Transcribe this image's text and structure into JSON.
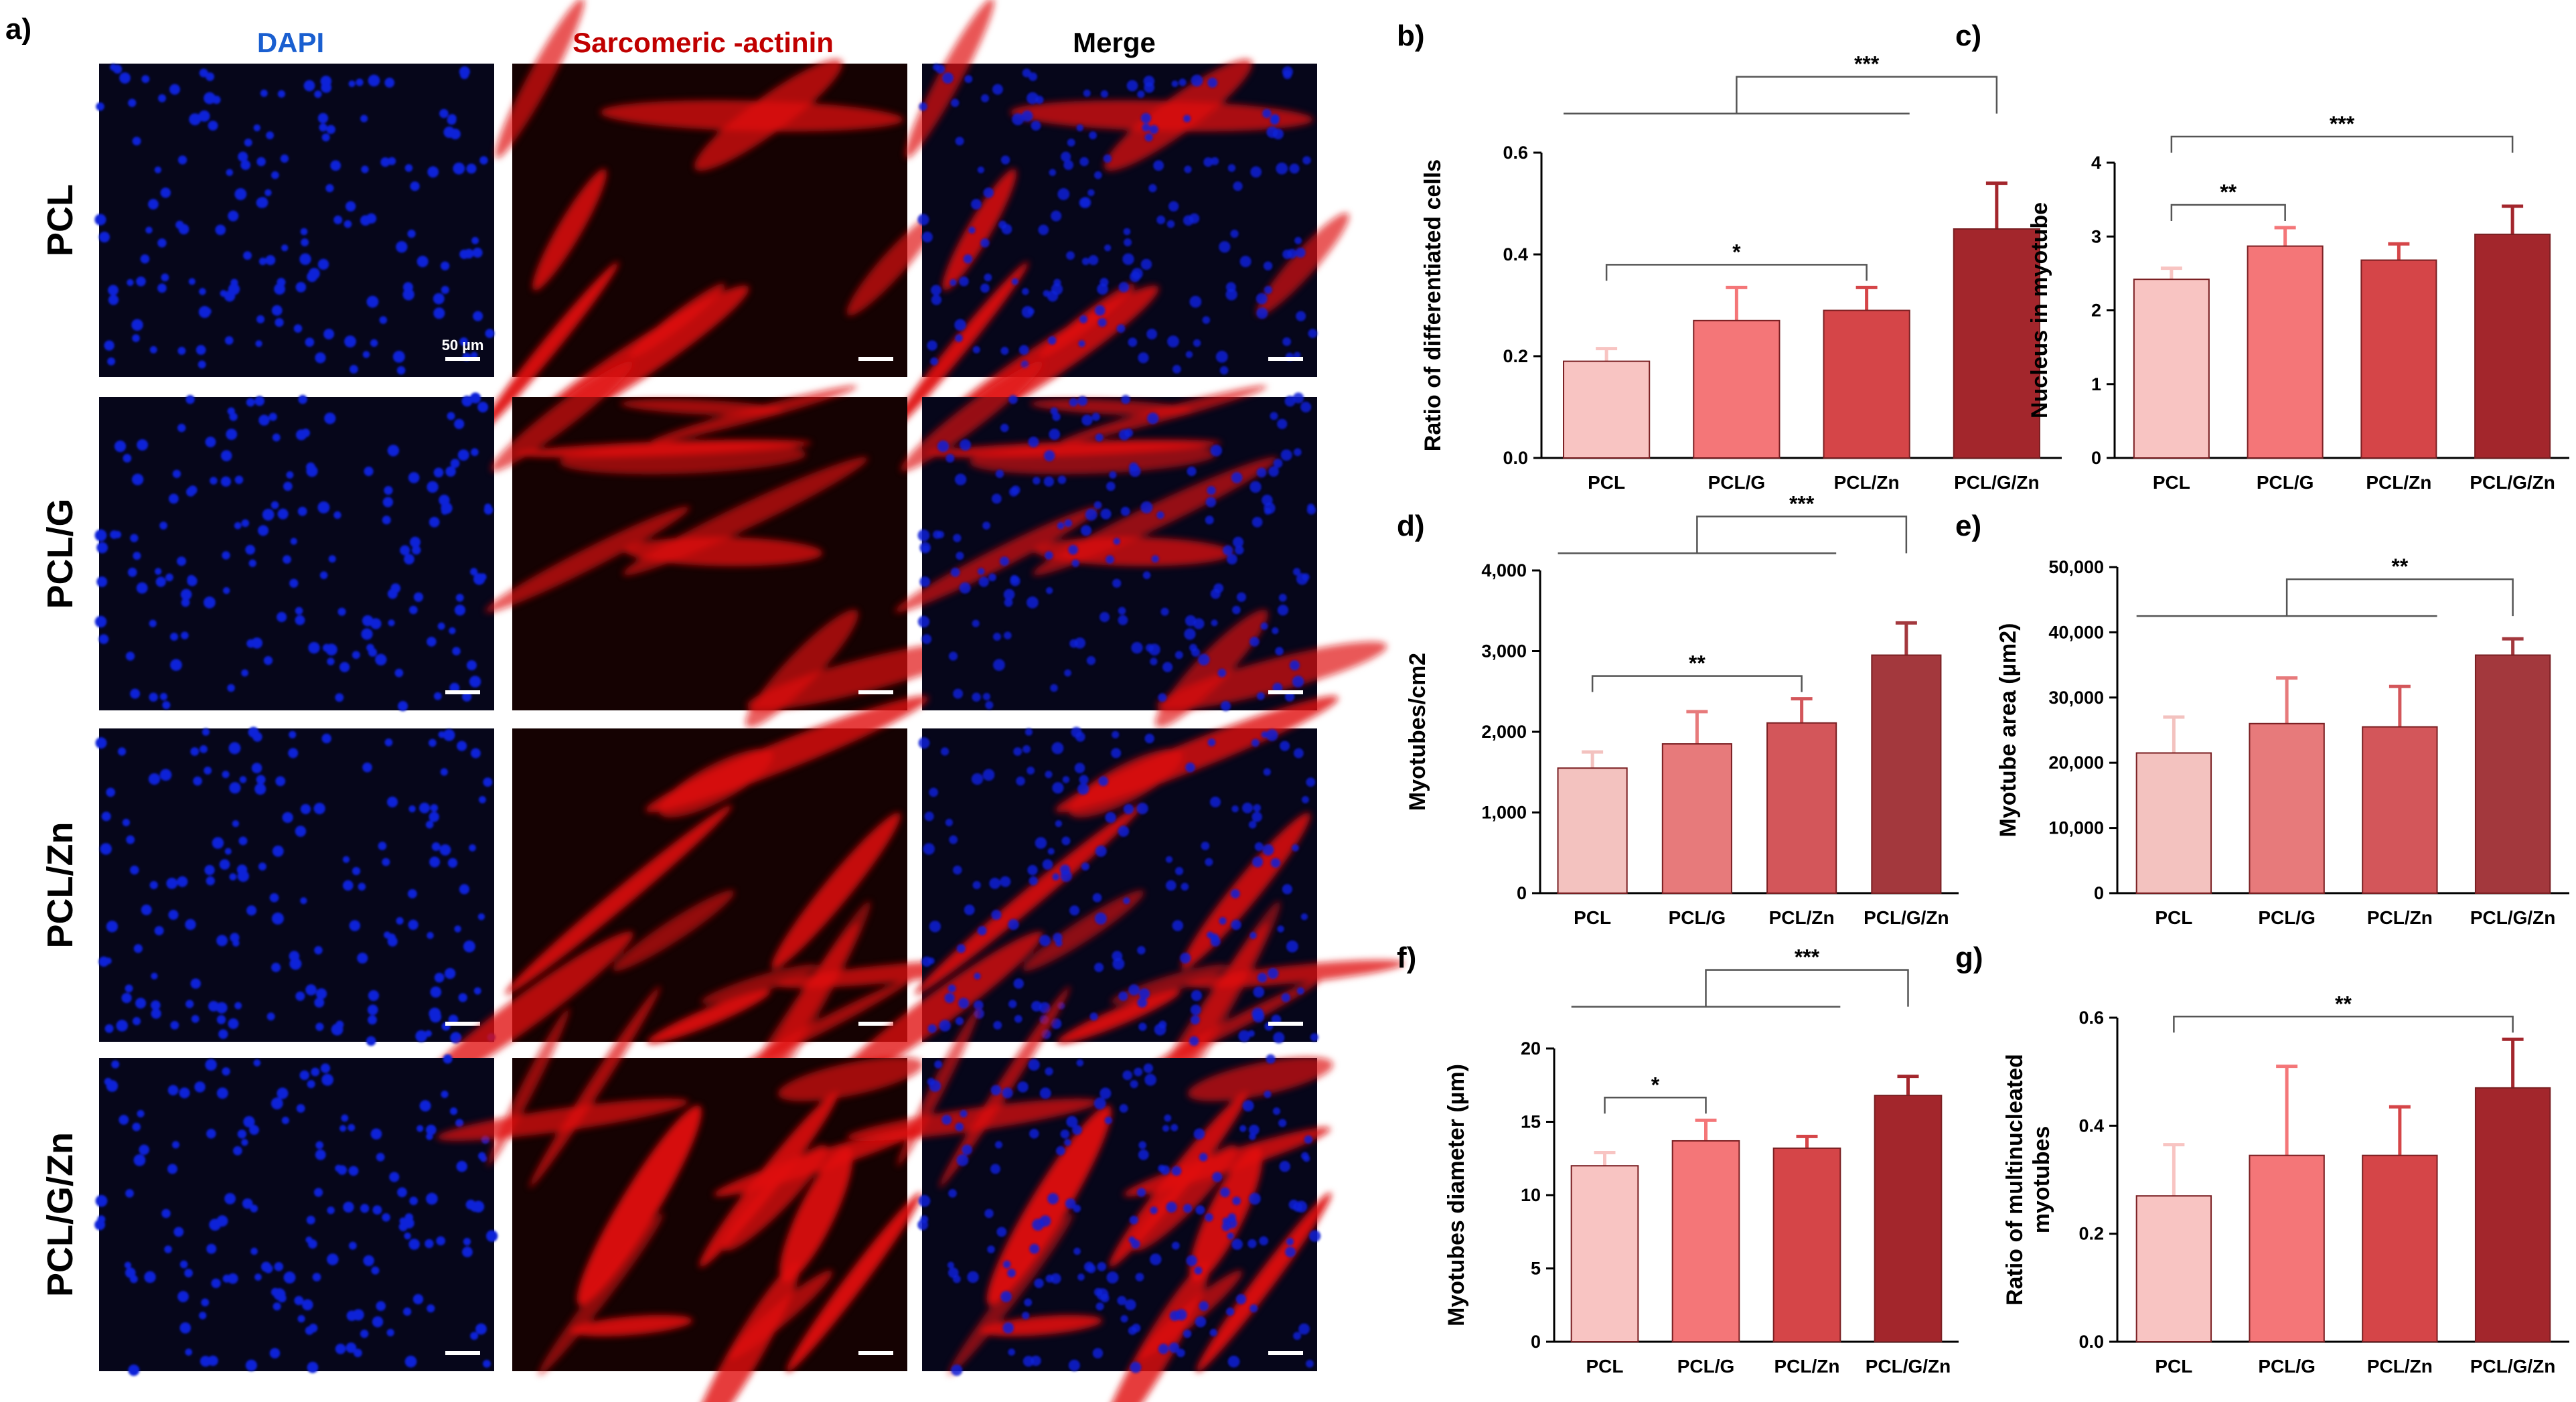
{
  "micrograph_panel": {
    "letter": "a)",
    "columns": [
      {
        "title": "DAPI",
        "color": "#1a5fd0"
      },
      {
        "title": "Sarcomeric   -actinin",
        "color": "#c00000"
      },
      {
        "title": "Merge",
        "color": "#000000"
      }
    ],
    "rows": [
      "PCL",
      "PCL/G",
      "PCL/Zn",
      "PCL/G/Zn"
    ],
    "scale_bar_label": "50 µm",
    "channel_colors": {
      "dapi": "#1020d8",
      "actinin": "#e01010",
      "background": "#06061a"
    }
  },
  "chart_data": [
    {
      "id": "b",
      "letter": "b)",
      "type": "bar",
      "categories": [
        "PCL",
        "PCL/G",
        "PCL/Zn",
        "PCL/G/Zn"
      ],
      "values": [
        0.19,
        0.27,
        0.29,
        0.45
      ],
      "errors": [
        0.025,
        0.065,
        0.045,
        0.09
      ],
      "ylabel": "Ratio of differentiated cells",
      "ylabel_lines": [
        "Ratio of differentiated cells"
      ],
      "ylim": [
        0,
        0.6
      ],
      "ticks": [
        {
          "v": 0,
          "label": "0.0"
        },
        {
          "v": 0.2,
          "label": "0.2"
        },
        {
          "v": 0.4,
          "label": "0.4"
        },
        {
          "v": 0.6,
          "label": "0.6"
        }
      ],
      "colors": [
        "#f8c4c2",
        "#f47678",
        "#d54548",
        "#a3262c"
      ],
      "significance": [
        {
          "type": "pair",
          "from": 0,
          "to": 2,
          "label": "*"
        },
        {
          "type": "group",
          "from": 0,
          "to": 2,
          "target": 3,
          "label": "***"
        }
      ]
    },
    {
      "id": "c",
      "letter": "c)",
      "type": "bar",
      "categories": [
        "PCL",
        "PCL/G",
        "PCL/Zn",
        "PCL/G/Zn"
      ],
      "values": [
        2.42,
        2.87,
        2.68,
        3.03
      ],
      "errors": [
        0.15,
        0.25,
        0.22,
        0.38
      ],
      "ylabel": "Nucleus in myotube",
      "ylabel_lines": [
        "Nucleus in myotube"
      ],
      "ylim": [
        0,
        4
      ],
      "ticks": [
        {
          "v": 0,
          "label": "0"
        },
        {
          "v": 1,
          "label": "1"
        },
        {
          "v": 2,
          "label": "2"
        },
        {
          "v": 3,
          "label": "3"
        },
        {
          "v": 4,
          "label": "4"
        }
      ],
      "colors": [
        "#f8c4c2",
        "#f47678",
        "#d54548",
        "#a3262c"
      ],
      "significance": [
        {
          "type": "pair",
          "from": 0,
          "to": 1,
          "label": "**"
        },
        {
          "type": "pair",
          "from": 0,
          "to": 3,
          "label": "***"
        }
      ]
    },
    {
      "id": "d",
      "letter": "d)",
      "type": "bar",
      "categories": [
        "PCL",
        "PCL/G",
        "PCL/Zn",
        "PCL/G/Zn"
      ],
      "values": [
        1550,
        1850,
        2110,
        2950
      ],
      "errors": [
        200,
        400,
        300,
        400
      ],
      "ylabel": "Myotubes/cm2",
      "ylabel_lines": [
        "Myotubes/cm2"
      ],
      "ylim": [
        0,
        4000
      ],
      "ticks": [
        {
          "v": 0,
          "label": "0"
        },
        {
          "v": 1000,
          "label": "1,000"
        },
        {
          "v": 2000,
          "label": "2,000"
        },
        {
          "v": 3000,
          "label": "3,000"
        },
        {
          "v": 4000,
          "label": "4,000"
        }
      ],
      "colors": [
        "#f3c2bf",
        "#e77a7b",
        "#d3565a",
        "#a3383d"
      ],
      "significance": [
        {
          "type": "pair",
          "from": 0,
          "to": 2,
          "label": "**"
        },
        {
          "type": "group",
          "from": 0,
          "to": 2,
          "target": 3,
          "label": "***"
        }
      ]
    },
    {
      "id": "e",
      "letter": "e)",
      "type": "bar",
      "categories": [
        "PCL",
        "PCL/G",
        "PCL/Zn",
        "PCL/G/Zn"
      ],
      "values": [
        21500,
        26000,
        25500,
        36500
      ],
      "errors": [
        5500,
        7000,
        6200,
        2500
      ],
      "ylabel": "Myotube area (µm2)",
      "ylabel_lines": [
        "Myotube area (µm2)"
      ],
      "ylim": [
        0,
        50000
      ],
      "ticks": [
        {
          "v": 0,
          "label": "0"
        },
        {
          "v": 10000,
          "label": "10,000"
        },
        {
          "v": 20000,
          "label": "20,000"
        },
        {
          "v": 30000,
          "label": "30,000"
        },
        {
          "v": 40000,
          "label": "40,000"
        },
        {
          "v": 50000,
          "label": "50,000"
        }
      ],
      "colors": [
        "#f3c2bf",
        "#e77a7b",
        "#d3565a",
        "#a3383d"
      ],
      "significance": [
        {
          "type": "group",
          "from": 0,
          "to": 2,
          "target": 3,
          "label": "**"
        }
      ]
    },
    {
      "id": "f",
      "letter": "f)",
      "type": "bar",
      "categories": [
        "PCL",
        "PCL/G",
        "PCL/Zn",
        "PCL/G/Zn"
      ],
      "values": [
        12.0,
        13.7,
        13.2,
        16.8
      ],
      "errors": [
        0.9,
        1.4,
        0.8,
        1.3
      ],
      "ylabel": "Myotubes diameter (µm)",
      "ylabel_lines": [
        "Myotubes diameter (µm)"
      ],
      "ylim": [
        0,
        20
      ],
      "ticks": [
        {
          "v": 0,
          "label": "0"
        },
        {
          "v": 5,
          "label": "5"
        },
        {
          "v": 10,
          "label": "10"
        },
        {
          "v": 15,
          "label": "15"
        },
        {
          "v": 20,
          "label": "20"
        }
      ],
      "colors": [
        "#f8c4c2",
        "#f47678",
        "#d54548",
        "#a3262c"
      ],
      "significance": [
        {
          "type": "pair",
          "from": 0,
          "to": 1,
          "label": "*"
        },
        {
          "type": "group",
          "from": 0,
          "to": 2,
          "target": 3,
          "label": "***"
        }
      ]
    },
    {
      "id": "g",
      "letter": "g)",
      "type": "bar",
      "categories": [
        "PCL",
        "PCL/G",
        "PCL/Zn",
        "PCL/G/Zn"
      ],
      "values": [
        0.27,
        0.345,
        0.345,
        0.47
      ],
      "errors": [
        0.095,
        0.165,
        0.09,
        0.09
      ],
      "ylabel": "Ratio of multinucleated myotubes",
      "ylabel_lines": [
        "Ratio of multinucleated",
        "myotubes"
      ],
      "ylim": [
        0,
        0.6
      ],
      "ticks": [
        {
          "v": 0,
          "label": "0.0"
        },
        {
          "v": 0.2,
          "label": "0.2"
        },
        {
          "v": 0.4,
          "label": "0.4"
        },
        {
          "v": 0.6,
          "label": "0.6"
        }
      ],
      "colors": [
        "#f8c4c2",
        "#f47678",
        "#d54548",
        "#a3262c"
      ],
      "significance": [
        {
          "type": "pair",
          "from": 0,
          "to": 3,
          "label": "**"
        }
      ]
    }
  ]
}
